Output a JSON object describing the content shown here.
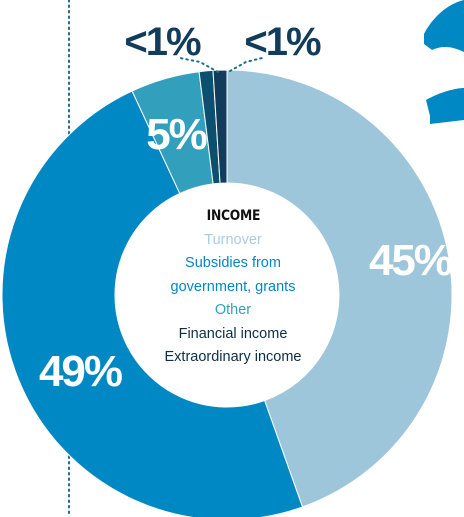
{
  "chart_data": {
    "type": "pie",
    "title": "INCOME",
    "categories": [
      "Turnover",
      "Subsidies from government, grants",
      "Other",
      "Financial income",
      "Extraordinary income"
    ],
    "values": [
      45,
      49,
      5,
      1,
      1
    ],
    "labels": [
      "45%",
      "49%",
      "5%",
      "<1%",
      "<1%"
    ],
    "colors": [
      "#9dc6da",
      "#0088c4",
      "#32a0bd",
      "#0d4f6e",
      "#123c5c"
    ]
  },
  "legend": {
    "title": "INCOME",
    "items": [
      {
        "line1": "Turnover",
        "color": "#a7cde0"
      },
      {
        "line1": "Subsidies from",
        "line2": "government, grants",
        "color": "#0088c4"
      },
      {
        "line1": "Other",
        "color": "#32a0bd"
      },
      {
        "line1": "Financial income",
        "color": "#0d2e45"
      },
      {
        "line1": "Extraordinary income",
        "color": "#0d2e45"
      }
    ]
  }
}
